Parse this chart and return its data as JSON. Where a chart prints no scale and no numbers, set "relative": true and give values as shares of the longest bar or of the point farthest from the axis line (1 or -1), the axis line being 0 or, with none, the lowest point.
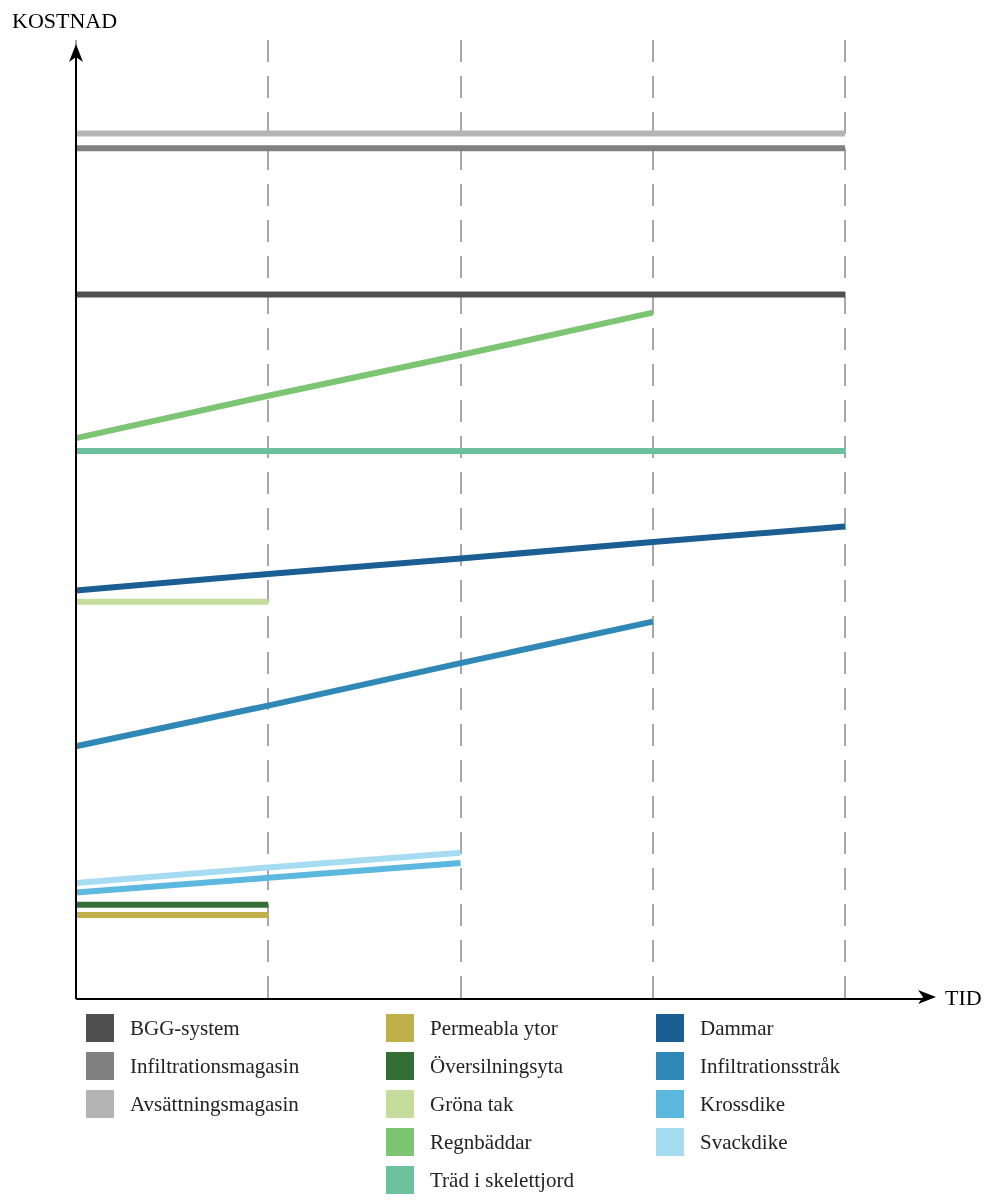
{
  "chart_data": {
    "type": "line",
    "relative": true,
    "xlabel": "TID",
    "ylabel": "KOSTNAD",
    "categories": [
      null,
      null,
      null,
      null,
      null
    ],
    "grid": "x",
    "legend": "bottom",
    "marker": "none",
    "line_style": "solid",
    "series": [
      {
        "name": "BGG-system",
        "color": "#505050",
        "values": [
          0.814,
          0.814,
          0.814,
          0.814,
          0.814
        ]
      },
      {
        "name": "Infiltrationsmagasin",
        "color": "#808080",
        "values": [
          0.983,
          0.983,
          0.983,
          0.983,
          0.983
        ]
      },
      {
        "name": "Avsättningsmagasin",
        "color": "#b4b4b4",
        "values": [
          1,
          1,
          1,
          1,
          1
        ]
      },
      {
        "name": "Permeabla ytor",
        "color": "#bfb04a",
        "values": [
          0.097,
          0.097,
          null,
          null,
          null
        ]
      },
      {
        "name": "Översilningsyta",
        "color": "#336e35",
        "values": [
          0.109,
          0.109,
          null,
          null,
          null
        ]
      },
      {
        "name": "Gröna tak",
        "color": "#c4dc9c",
        "values": [
          0.459,
          0.459,
          null,
          null,
          null
        ]
      },
      {
        "name": "Regnbäddar",
        "color": "#7cc572",
        "values": [
          0.648,
          0.697,
          0.744,
          0.793,
          null
        ]
      },
      {
        "name": "Träd i skelettjord",
        "color": "#6cc09c",
        "values": [
          0.633,
          0.633,
          0.633,
          0.633,
          0.633
        ]
      },
      {
        "name": "Dammar",
        "color": "#1b5e94",
        "values": [
          0.472,
          0.491,
          0.509,
          0.528,
          0.546
        ]
      },
      {
        "name": "Infiltrationsstråk",
        "color": "#2f88b5",
        "values": [
          0.292,
          0.339,
          0.388,
          0.436,
          null
        ]
      },
      {
        "name": "Krossdike",
        "color": "#5db8e0",
        "values": [
          0.123,
          0.14,
          0.157,
          null,
          null
        ]
      },
      {
        "name": "Svackdike",
        "color": "#a6dcf2",
        "values": [
          0.134,
          0.152,
          0.169,
          null,
          null
        ]
      }
    ]
  }
}
